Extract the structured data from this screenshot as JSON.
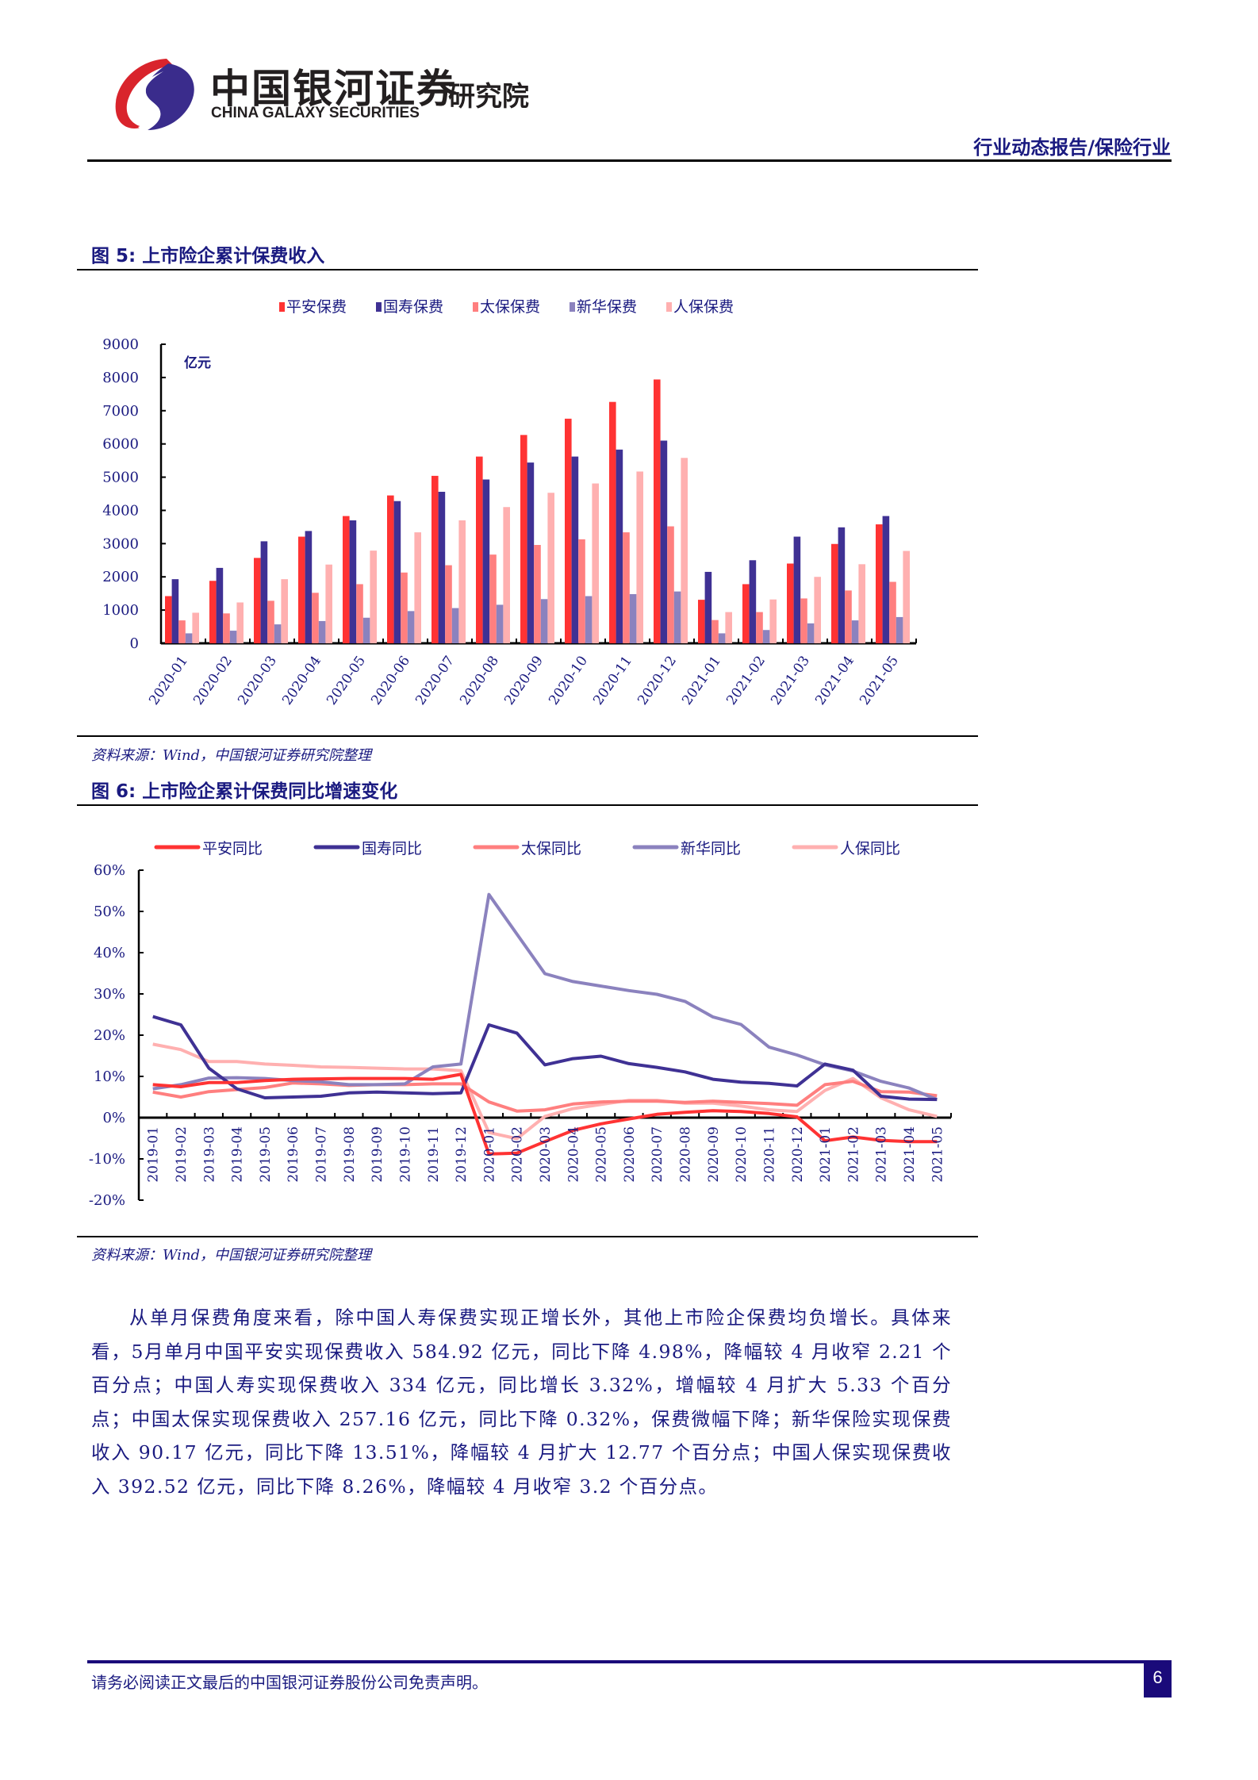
{
  "header": {
    "brand_cn": "中国银河证券",
    "brand_en": "CHINA GALAXY SECURITIES",
    "institute": "研究院",
    "report_type": "行业动态报告/保险行业"
  },
  "figure5": {
    "title": "图 5:  上市险企累计保费收入",
    "source": "资料来源：Wind，中国银河证券研究院整理"
  },
  "figure6": {
    "title": "图 6:  上市险企累计保费同比增速变化",
    "source": "资料来源：Wind，中国银河证券研究院整理"
  },
  "body": {
    "paragraph": "从单月保费角度来看，除中国人寿保费实现正增长外，其他上市险企保费均负增长。具体来看，5月单月中国平安实现保费收入 584.92 亿元，同比下降 4.98%，降幅较 4 月收窄 2.21 个百分点；中国人寿实现保费收入 334 亿元，同比增长 3.32%，增幅较 4 月扩大 5.33 个百分点；中国太保实现保费收入 257.16 亿元，同比下降 0.32%，保费微幅下降；新华保险实现保费收入 90.17 亿元，同比下降 13.51%，降幅较 4 月扩大 12.77 个百分点；中国人保实现保费收入 392.52 亿元，同比下降 8.26%，降幅较 4 月收窄 3.2 个百分点。"
  },
  "footer": {
    "disclaimer": "请务必阅读正文最后的中国银河证券股份公司免责声明。",
    "page_number": "6"
  },
  "colors": {
    "pingan": "#FF3333",
    "guoshou": "#3F3194",
    "taibao": "#FF7F7F",
    "xinhua": "#8B82BE",
    "renbao": "#FFB0B0",
    "text": "#1A1A80"
  },
  "chart_data": [
    {
      "type": "bar",
      "title": "上市险企累计保费收入",
      "ylabel": "亿元",
      "xlabel": "",
      "ylim": [
        0,
        9000
      ],
      "yticks": [
        0,
        1000,
        2000,
        3000,
        4000,
        5000,
        6000,
        7000,
        8000,
        9000
      ],
      "legend_position": "top",
      "grid": false,
      "categories": [
        "2020-01",
        "2020-02",
        "2020-03",
        "2020-04",
        "2020-05",
        "2020-06",
        "2020-07",
        "2020-08",
        "2020-09",
        "2020-10",
        "2020-11",
        "2020-12",
        "2021-01",
        "2021-02",
        "2021-03",
        "2021-04",
        "2021-05"
      ],
      "series": [
        {
          "name": "平安保费",
          "color": "#FF3333",
          "values": [
            1420,
            1880,
            2570,
            3210,
            3830,
            4450,
            5040,
            5620,
            6270,
            6760,
            7265,
            7940,
            1310,
            1780,
            2400,
            2990,
            3580
          ]
        },
        {
          "name": "国寿保费",
          "color": "#3F3194",
          "values": [
            1930,
            2270,
            3070,
            3380,
            3700,
            4280,
            4560,
            4930,
            5440,
            5620,
            5830,
            6100,
            2150,
            2500,
            3210,
            3490,
            3830
          ]
        },
        {
          "name": "太保保费",
          "color": "#FF7F7F",
          "values": [
            690,
            900,
            1280,
            1520,
            1780,
            2130,
            2350,
            2670,
            2960,
            3130,
            3340,
            3520,
            700,
            940,
            1350,
            1590,
            1850
          ]
        },
        {
          "name": "新华保费",
          "color": "#8B82BE",
          "values": [
            300,
            380,
            570,
            670,
            770,
            970,
            1060,
            1160,
            1330,
            1420,
            1480,
            1560,
            300,
            400,
            600,
            690,
            790
          ]
        },
        {
          "name": "人保保费",
          "color": "#FFB0B0",
          "values": [
            920,
            1230,
            1930,
            2370,
            2790,
            3340,
            3700,
            4100,
            4530,
            4810,
            5170,
            5580,
            940,
            1320,
            2000,
            2380,
            2780
          ]
        }
      ]
    },
    {
      "type": "line",
      "title": "上市险企累计保费同比增速变化",
      "ylabel": "",
      "xlabel": "",
      "ylim": [
        -20,
        60
      ],
      "yticks": [
        -20,
        -10,
        0,
        10,
        20,
        30,
        40,
        50,
        60
      ],
      "ytick_labels": [
        "-20%",
        "-10%",
        "0%",
        "10%",
        "20%",
        "30%",
        "40%",
        "50%",
        "60%"
      ],
      "legend_position": "top",
      "grid": false,
      "categories": [
        "2019-01",
        "2019-02",
        "2019-03",
        "2019-04",
        "2019-05",
        "2019-06",
        "2019-07",
        "2019-08",
        "2019-09",
        "2019-10",
        "2019-11",
        "2019-12",
        "2020-01",
        "2020-02",
        "2020-03",
        "2020-04",
        "2020-05",
        "2020-06",
        "2020-07",
        "2020-08",
        "2020-09",
        "2020-10",
        "2020-11",
        "2020-12",
        "2021-01",
        "2021-02",
        "2021-03",
        "2021-04",
        "2021-05"
      ],
      "series": [
        {
          "name": "平安同比",
          "color": "#FF3333",
          "values": [
            8.0,
            7.5,
            8.5,
            8.5,
            9.0,
            9.3,
            9.4,
            9.5,
            9.5,
            9.5,
            9.3,
            10.5,
            -8.8,
            -8.6,
            -5.8,
            -3.1,
            -1.5,
            -0.3,
            0.8,
            1.3,
            1.7,
            1.5,
            1.0,
            0.2,
            -5.6,
            -4.7,
            -5.5,
            -5.8,
            -5.8
          ]
        },
        {
          "name": "国寿同比",
          "color": "#3F3194",
          "values": [
            24.5,
            22.5,
            12.0,
            7.0,
            4.8,
            5.0,
            5.2,
            6.0,
            6.2,
            6.0,
            5.8,
            6.0,
            22.5,
            20.5,
            12.8,
            14.3,
            14.9,
            13.1,
            12.2,
            11.1,
            9.3,
            8.6,
            8.3,
            7.7,
            13.0,
            11.5,
            5.2,
            4.5,
            4.4
          ]
        },
        {
          "name": "太保同比",
          "color": "#FF7F7F",
          "values": [
            6.2,
            5.0,
            6.3,
            6.8,
            7.3,
            8.4,
            8.2,
            7.8,
            8.0,
            8.0,
            8.2,
            8.2,
            3.8,
            1.6,
            1.9,
            3.3,
            3.8,
            4.0,
            4.0,
            3.7,
            4.0,
            3.7,
            3.4,
            3.0,
            8.0,
            8.8,
            6.3,
            6.2,
            5.3
          ]
        },
        {
          "name": "新华同比",
          "color": "#8B82BE",
          "values": [
            7.0,
            8.0,
            9.6,
            9.7,
            9.5,
            9.0,
            8.7,
            8.0,
            8.0,
            8.2,
            12.3,
            13.0,
            54.1,
            44.5,
            34.9,
            33.0,
            31.9,
            30.8,
            29.9,
            28.2,
            24.4,
            22.6,
            17.1,
            15.2,
            12.8,
            11.3,
            8.8,
            7.2,
            4.4
          ]
        },
        {
          "name": "人保同比",
          "color": "#FFB0B0",
          "values": [
            17.8,
            16.5,
            13.6,
            13.6,
            13.0,
            12.7,
            12.3,
            12.2,
            12.0,
            11.8,
            11.8,
            11.4,
            -3.6,
            -5.1,
            0.3,
            2.2,
            3.2,
            4.2,
            4.2,
            3.5,
            3.5,
            2.8,
            1.9,
            1.5,
            6.6,
            9.5,
            4.8,
            1.9,
            0.3
          ]
        }
      ]
    }
  ]
}
